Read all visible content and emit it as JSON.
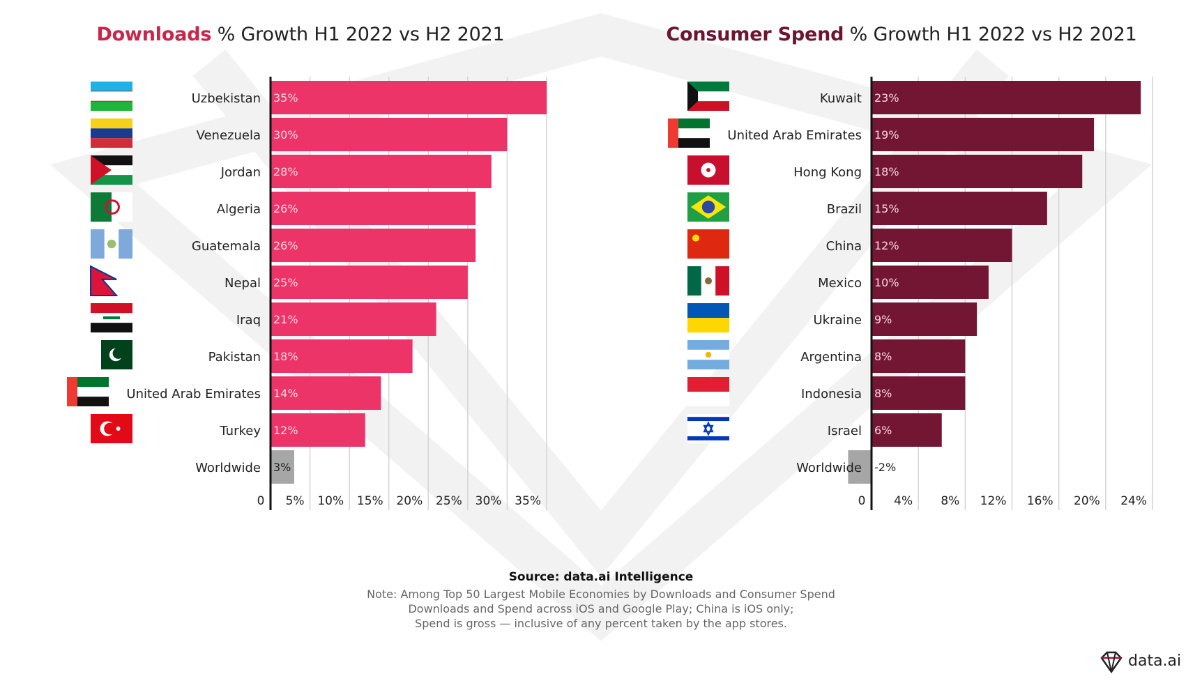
{
  "colors": {
    "downloads": "#ec3469",
    "downloads_title": "#c8264a",
    "spend": "#731634",
    "spend_title": "#6e1431",
    "worldwide": "#a6a6a6",
    "grid": "#d4d4d4",
    "axis": "#111111",
    "watermark": "#f2f2f2"
  },
  "chart_data": [
    {
      "type": "bar",
      "orientation": "horizontal",
      "title_highlight": "Downloads",
      "title_rest": " % Growth H1 2022 vs H2 2021",
      "categories": [
        "Uzbekistan",
        "Venezuela",
        "Jordan",
        "Algeria",
        "Guatemala",
        "Nepal",
        "Iraq",
        "Pakistan",
        "United Arab Emirates",
        "Turkey",
        "Worldwide"
      ],
      "values": [
        35,
        30,
        28,
        26,
        26,
        25,
        21,
        18,
        14,
        12,
        3
      ],
      "labels": [
        "35%",
        "30%",
        "28%",
        "26%",
        "26%",
        "25%",
        "21%",
        "18%",
        "14%",
        "12%",
        "3%"
      ],
      "flags": [
        "uzbekistan-flag",
        "venezuela-flag",
        "jordan-flag",
        "algeria-flag",
        "guatemala-flag",
        "nepal-flag",
        "iraq-flag",
        "pakistan-flag",
        "uae-flag",
        "turkey-flag",
        ""
      ],
      "xlim": [
        0,
        35
      ],
      "xticks": [
        0,
        5,
        10,
        15,
        20,
        25,
        30,
        35
      ],
      "xtick_labels": [
        "0",
        "5%",
        "10%",
        "15%",
        "20%",
        "25%",
        "30%",
        "35%"
      ],
      "grid": true
    },
    {
      "type": "bar",
      "orientation": "horizontal",
      "title_highlight": "Consumer Spend",
      "title_rest": " % Growth H1 2022 vs H2 2021",
      "categories": [
        "Kuwait",
        "United Arab Emirates",
        "Hong Kong",
        "Brazil",
        "China",
        "Mexico",
        "Ukraine",
        "Argentina",
        "Indonesia",
        "Israel",
        "Worldwide"
      ],
      "values": [
        23,
        19,
        18,
        15,
        12,
        10,
        9,
        8,
        8,
        6,
        -2
      ],
      "labels": [
        "23%",
        "19%",
        "18%",
        "15%",
        "12%",
        "10%",
        "9%",
        "8%",
        "8%",
        "6%",
        "-2%"
      ],
      "flags": [
        "kuwait-flag",
        "uae-flag",
        "hong-kong-flag",
        "brazil-flag",
        "china-flag",
        "mexico-flag",
        "ukraine-flag",
        "argentina-flag",
        "indonesia-flag",
        "israel-flag",
        ""
      ],
      "xlim": [
        0,
        24
      ],
      "xticks": [
        0,
        4,
        8,
        12,
        16,
        20,
        24
      ],
      "xtick_labels": [
        "0",
        "4%",
        "8%",
        "12%",
        "16%",
        "20%",
        "24%"
      ],
      "grid": true
    }
  ],
  "source": {
    "title": "Source: data.ai Intelligence",
    "note_lines": [
      "Note: Among Top 50 Largest Mobile Economies by Downloads and Consumer Spend",
      "Downloads and Spend across iOS and Google Play; China is iOS only;",
      "Spend is gross — inclusive of any percent taken by the app stores."
    ]
  },
  "brand": {
    "logo_text": "data.ai"
  }
}
